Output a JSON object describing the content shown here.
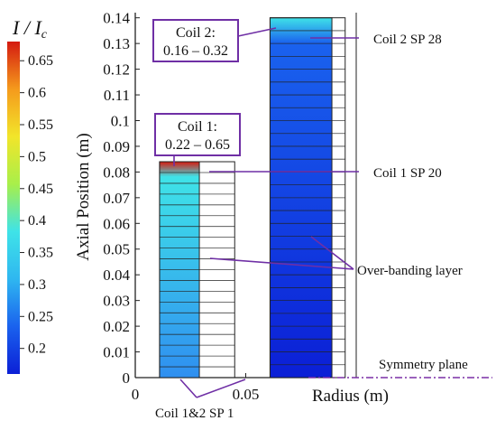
{
  "colorbar": {
    "title": "I / I",
    "title_subscript": "c",
    "min": 0.16,
    "max": 0.68,
    "ticks": [
      "0.65",
      "0.6",
      "0.55",
      "0.5",
      "0.45",
      "0.4",
      "0.35",
      "0.3",
      "0.25",
      "0.2"
    ],
    "tick_values": [
      0.65,
      0.6,
      0.55,
      0.5,
      0.45,
      0.4,
      0.35,
      0.3,
      0.25,
      0.2
    ],
    "colormap": [
      "#0b1fd6",
      "#1a62ee",
      "#2fb7f0",
      "#3fe3e8",
      "#a8ef4a",
      "#f2e52a",
      "#f59a1c",
      "#d41a10"
    ]
  },
  "axes": {
    "ylabel": "Axial Position (m)",
    "xlabel": "Radius (m)",
    "y_ticks": [
      "0.14",
      "0.13",
      "0.12",
      "0.11",
      "0.1",
      "0.09",
      "0.08",
      "0.07",
      "0.06",
      "0.05",
      "0.04",
      "0.03",
      "0.02",
      "0.01",
      "0"
    ],
    "y_tick_values": [
      0.14,
      0.13,
      0.12,
      0.11,
      0.1,
      0.09,
      0.08,
      0.07,
      0.06,
      0.05,
      0.04,
      0.03,
      0.02,
      0.01,
      0
    ],
    "x_ticks": [
      "0",
      "0.05"
    ],
    "x_tick_values": [
      0,
      0.05
    ],
    "ylim": [
      0,
      0.142
    ]
  },
  "coils": {
    "coil1": {
      "name_label": "Coil 1:",
      "range_label": "0.22 – 0.65",
      "r_inner": 0.011,
      "r_outer": 0.029,
      "overband_outer": 0.045,
      "height": 0.084,
      "pancakes": 20,
      "range": [
        0.22,
        0.65
      ],
      "color_top": "#d41a10",
      "color_body_top": "#3fe3e8",
      "color_body_bottom": "#2f8ff0"
    },
    "coil2": {
      "name_label": "Coil 2:",
      "range_label": "0.16 – 0.32",
      "r_inner": 0.061,
      "r_outer": 0.089,
      "overband_outer": 0.095,
      "height": 0.14,
      "pancakes": 28,
      "range": [
        0.16,
        0.32
      ],
      "color_top": "#3fe3e8",
      "color_body_top": "#1a62ee",
      "color_body_bottom": "#0b1fd6"
    },
    "outer_line_r": 0.1
  },
  "annotations": {
    "coil2_sp28": "Coil 2 SP 28",
    "coil1_sp20": "Coil 1 SP 20",
    "overbanding": "Over-banding layer",
    "symmetry": "Symmetry plane",
    "sp1": "Coil 1&2 SP 1"
  },
  "colors": {
    "annotation_line": "#6f2fa5",
    "symmetry_line": "#7a2fa5",
    "box_border": "#6f2fa5"
  }
}
